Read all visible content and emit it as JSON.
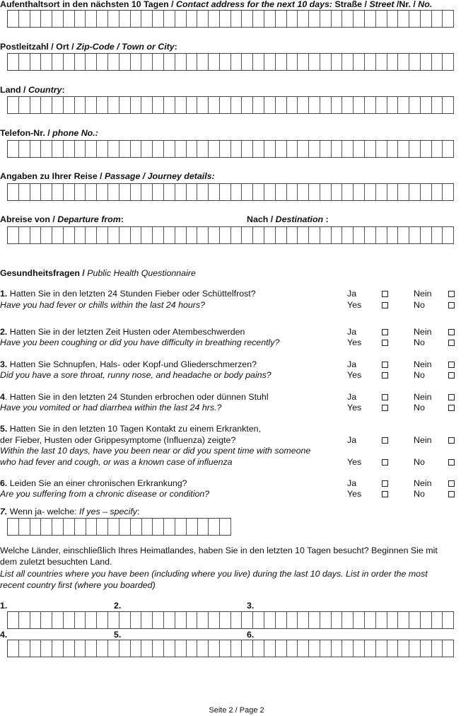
{
  "fields": {
    "address": {
      "de": "Aufenthaltsort in den nächsten 10 Tagen / ",
      "en": "Contact address for the next 10 days:",
      "de2": " Straße / ",
      "en2": "Street",
      "de3": " /Nr. / ",
      "en3": "No."
    },
    "zip": {
      "de": "Postleitzahl / Ort / ",
      "en": "Zip-Code / Town or City",
      "tail": ":"
    },
    "country": {
      "de": "Land / ",
      "en": "Country",
      "tail": ":"
    },
    "phone": {
      "de": "Telefon-Nr. / ",
      "en": "phone No.:"
    },
    "journey": {
      "de": "Angaben zu Ihrer Reise / ",
      "en": "Passage / Journey details:"
    },
    "departure": {
      "de": "Abreise von / ",
      "en": "Departure from",
      "tail": ":"
    },
    "destination": {
      "de": "Nach / ",
      "en": "Destination",
      "tail": " :"
    }
  },
  "questionnaire": {
    "title_de": "Gesundheitsfragen / ",
    "title_en": "Public Health Questionnaire",
    "yes_de": "Ja",
    "yes_en": "Yes",
    "no_de": "Nein",
    "no_en": "No",
    "questions": [
      {
        "num": "1.",
        "de": " Hatten Sie in den letzten 24 Stunden Fieber oder Schüttelfrost?",
        "en": "Have you had fever or chills within the last 24 hours?"
      },
      {
        "num": "2.",
        "de": " Hatten Sie in der letzten Zeit Husten oder Atembeschwerden",
        "en": "Have you been coughing or did you have difficulty in breathing recently?"
      },
      {
        "num": "3.",
        "de": " Hatten Sie Schnupfen, Hals- oder Kopf-und Gliederschmerzen?",
        "en": "Did you have a sore throat, runny nose, and headache or body pains?"
      },
      {
        "num": "4",
        "de": ". Hatten Sie in den letzten 24 Stunden erbrochen oder dünnen Stuhl",
        "en": "Have you vomited or had diarrhea within the last 24 hrs.?"
      },
      {
        "num": "5.",
        "de": " Hatten Sie in den letzten 10 Tagen Kontakt zu einem Erkrankten,",
        "de2": "der Fieber, Husten oder Grippesymptome (Influenza) zeigte?",
        "en": "Within the last 10 days, have you been near or did you spent time with someone",
        "en2": "who had fever and cough, or was a known case of influenza"
      },
      {
        "num": "6.",
        "de": " Leiden Sie an einer chronischen Erkrankung?",
        "en": "Are you suffering from a chronic disease or condition?"
      }
    ],
    "q7": {
      "num": "7.",
      "de": " Wenn ja- welche: ",
      "en": "If yes – specify",
      "tail": ":"
    }
  },
  "countries": {
    "de1": "Welche Länder, einschließlich Ihres Heimatlandes, haben Sie in den letzten 10 Tagen besucht? Beginnen Sie mit",
    "de2": "dem zuletzt besuchten Land.",
    "en1": "List all countries where you have been (including where you live) during the last 10 days. List in order the most",
    "en2": "recent country first (where you boarded)",
    "labels": [
      "1.",
      "2.",
      "3.",
      "4.",
      "5.",
      "6."
    ]
  },
  "footer": "Seite 2 / Page 2"
}
